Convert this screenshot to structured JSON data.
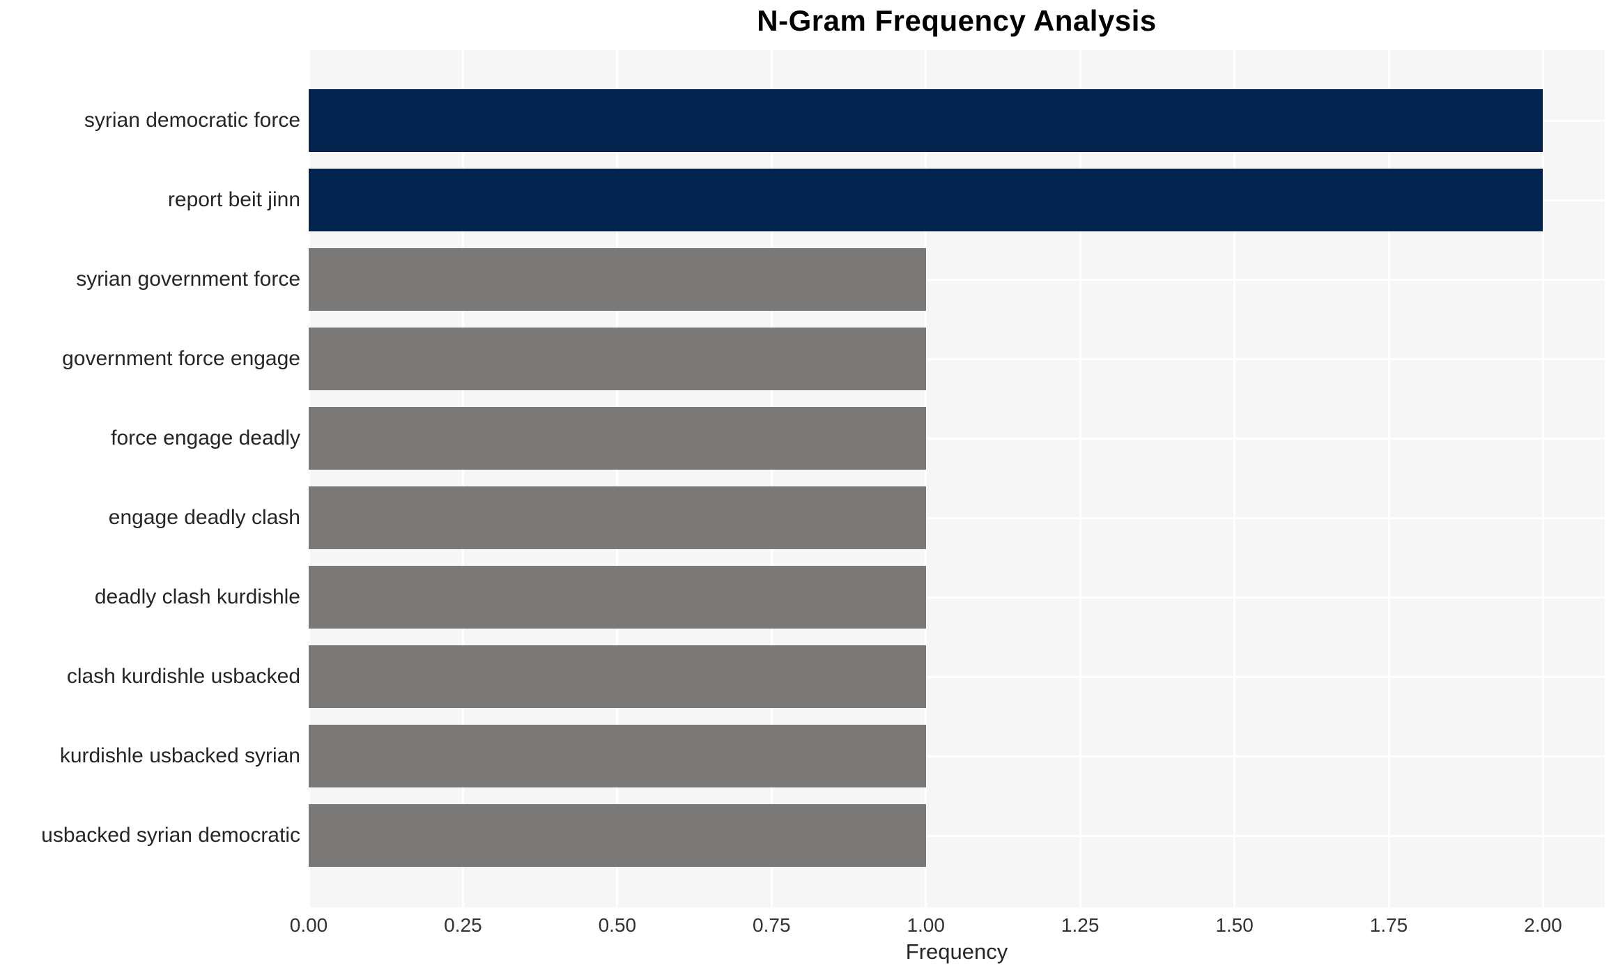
{
  "chart_data": {
    "type": "bar",
    "orientation": "horizontal",
    "title": "N-Gram Frequency Analysis",
    "xlabel": "Frequency",
    "ylabel": "",
    "categories": [
      "syrian democratic force",
      "report beit jinn",
      "syrian government force",
      "government force engage",
      "force engage deadly",
      "engage deadly clash",
      "deadly clash kurdishle",
      "clash kurdishle usbacked",
      "kurdishle usbacked syrian",
      "usbacked syrian democratic"
    ],
    "values": [
      2,
      2,
      1,
      1,
      1,
      1,
      1,
      1,
      1,
      1
    ],
    "bar_colors": [
      "#02234d",
      "#02234d",
      "#7a7977",
      "#7a7977",
      "#7a7977",
      "#7a7977",
      "#7a7977",
      "#7a7977",
      "#7a7977",
      "#7a7977"
    ],
    "xlim": [
      0,
      2.1
    ],
    "xtick_labels": [
      "0.00",
      "0.25",
      "0.50",
      "0.75",
      "1.00",
      "1.25",
      "1.50",
      "1.75",
      "2.00"
    ],
    "xtick_values": [
      0,
      0.25,
      0.5,
      0.75,
      1.0,
      1.25,
      1.5,
      1.75,
      2.0
    ],
    "grid": true,
    "legend": false,
    "colors": {
      "highlight_bar": "#02234d",
      "default_bar": "#7a7977",
      "plot_background": "#f6f6f7",
      "gridline": "#ffffff",
      "title_text": "#000000",
      "tick_text": "#333333",
      "label_text": "#262626",
      "figure_background": "#ffffff"
    }
  }
}
